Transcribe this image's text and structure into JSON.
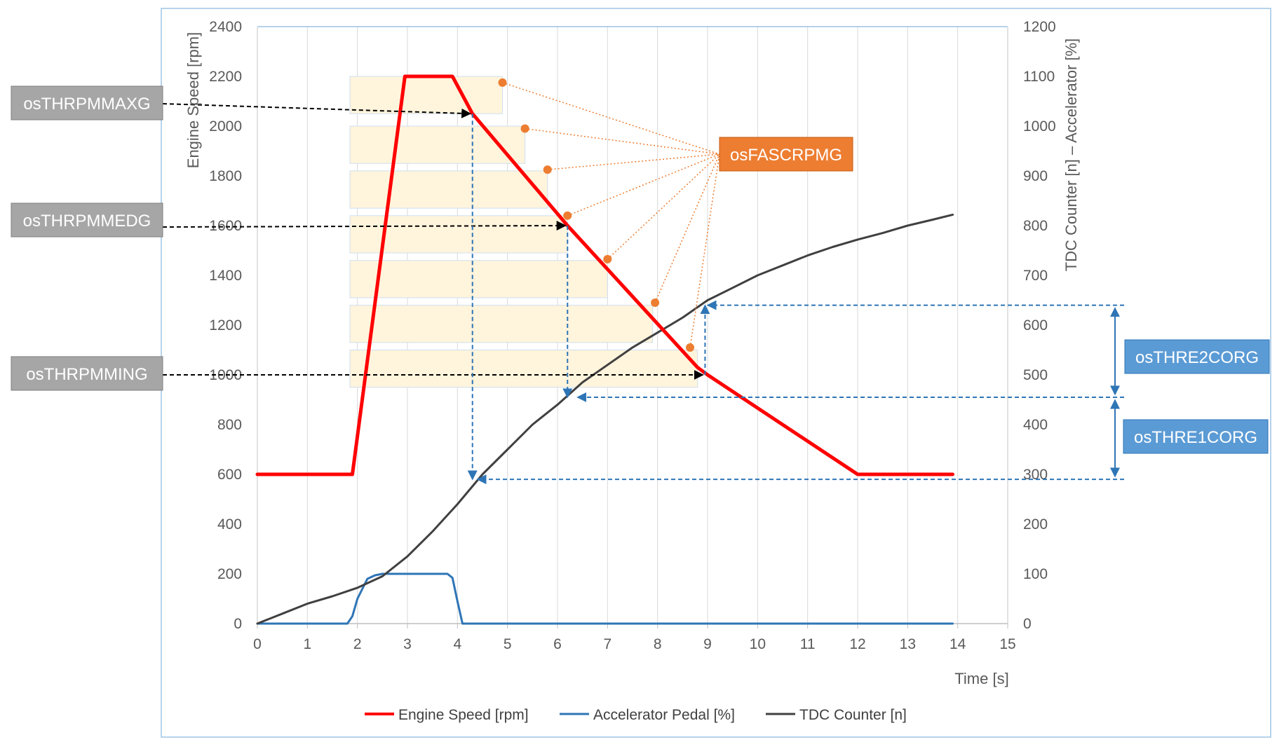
{
  "chart_data": {
    "type": "line",
    "title": "",
    "xlabel": "Time [s]",
    "ylabel_left": "Engine Speed [rpm]",
    "ylabel_right": "TDC Counter [n] – Accelerator [%]",
    "xlim": [
      0,
      15
    ],
    "ylim_left": [
      0,
      2400
    ],
    "ylim_right": [
      0,
      1200
    ],
    "x_ticks": [
      "0",
      "1",
      "2",
      "3",
      "4",
      "5",
      "6",
      "7",
      "8",
      "9",
      "10",
      "11",
      "12",
      "13",
      "14",
      "15"
    ],
    "y_left_ticks": [
      "0",
      "200",
      "400",
      "600",
      "800",
      "1000",
      "1200",
      "1400",
      "1600",
      "1800",
      "2000",
      "2200",
      "2400"
    ],
    "y_right_ticks": [
      "0",
      "100",
      "200",
      "300",
      "400",
      "500",
      "600",
      "700",
      "800",
      "900",
      "1000",
      "1100",
      "1200"
    ],
    "grid": "vertical",
    "legend_position": "bottom",
    "series": [
      {
        "name": "Engine Speed [rpm]",
        "axis": "left",
        "color": "#ff0000",
        "x": [
          0,
          1.9,
          2.95,
          3.9,
          4.3,
          6.2,
          8.8,
          9.0,
          12.0,
          13.9
        ],
        "y": [
          600,
          600,
          2200,
          2200,
          2050,
          1600,
          1030,
          1000,
          600,
          600
        ]
      },
      {
        "name": "Accelerator Pedal [%]",
        "axis": "right",
        "color": "#2e75b6",
        "x": [
          0,
          1.8,
          1.9,
          2.0,
          2.2,
          2.35,
          2.5,
          3.8,
          3.9,
          4.0,
          4.1,
          13.9
        ],
        "y": [
          0,
          0,
          15,
          50,
          90,
          97,
          100,
          100,
          92,
          45,
          0,
          0
        ]
      },
      {
        "name": "TDC Counter [n]",
        "axis": "right",
        "color": "#404040",
        "x": [
          0,
          0.5,
          1,
          1.5,
          2,
          2.5,
          3,
          3.5,
          4,
          4.5,
          5,
          5.5,
          6,
          6.5,
          7,
          7.5,
          8,
          8.5,
          9,
          9.5,
          10,
          10.5,
          11,
          11.5,
          12,
          12.5,
          13,
          13.5,
          13.9
        ],
        "y": [
          0,
          20,
          40,
          55,
          72,
          95,
          135,
          185,
          240,
          300,
          350,
          400,
          440,
          485,
          520,
          555,
          585,
          615,
          650,
          675,
          700,
          720,
          740,
          757,
          772,
          785,
          800,
          812,
          822
        ]
      }
    ],
    "callouts": {
      "rpm_max": "osTHRPMMAXG",
      "rpm_med": "osTHRPMMEDG",
      "rpm_min": "osTHRPMMING",
      "fascrpm": "osFASCRPMG",
      "e2corg": "osTHRE2CORG",
      "e1corg": "osTHRE1CORG"
    },
    "colors": {
      "plot_border": "#9dc3e6",
      "grid": "#d9d9d9",
      "highlight_band": "#fff4dc",
      "callout_gray": "#a6a6a6",
      "callout_orange": "#ed7d31",
      "callout_blue": "#5b9bd5",
      "dashed_blue": "#2e75b6"
    }
  }
}
